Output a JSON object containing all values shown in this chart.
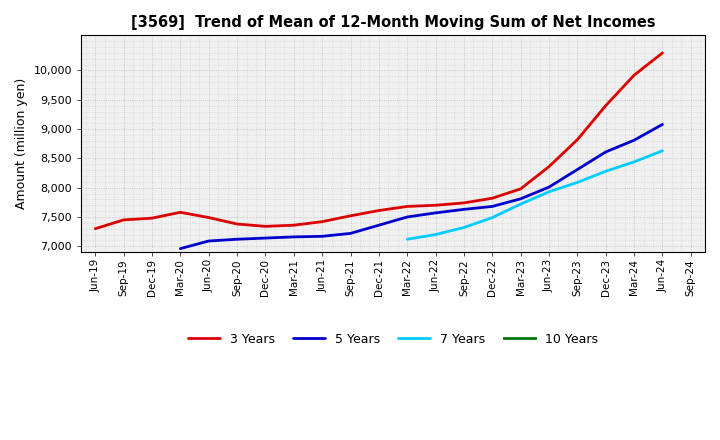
{
  "title": "[3569]  Trend of Mean of 12-Month Moving Sum of Net Incomes",
  "ylabel": "Amount (million yen)",
  "plot_bg_color": "#f0f0f0",
  "fig_bg_color": "#ffffff",
  "grid_color": "#bbbbbb",
  "ylim": [
    6900,
    10600
  ],
  "yticks": [
    7000,
    7500,
    8000,
    8500,
    9000,
    9500,
    10000
  ],
  "series": {
    "3 Years": {
      "color": "#dd0000",
      "linewidth": 2.0,
      "data": [
        [
          "Jun-19",
          7300
        ],
        [
          "Sep-19",
          7450
        ],
        [
          "Dec-19",
          7480
        ],
        [
          "Mar-20",
          7580
        ],
        [
          "Jun-20",
          7490
        ],
        [
          "Sep-20",
          7380
        ],
        [
          "Dec-20",
          7340
        ],
        [
          "Mar-21",
          7360
        ],
        [
          "Jun-21",
          7420
        ],
        [
          "Sep-21",
          7520
        ],
        [
          "Dec-21",
          7610
        ],
        [
          "Mar-22",
          7680
        ],
        [
          "Jun-22",
          7700
        ],
        [
          "Sep-22",
          7740
        ],
        [
          "Dec-22",
          7820
        ],
        [
          "Mar-23",
          7980
        ],
        [
          "Jun-23",
          8360
        ],
        [
          "Sep-23",
          8820
        ],
        [
          "Dec-23",
          9400
        ],
        [
          "Mar-24",
          9920
        ],
        [
          "Jun-24",
          10300
        ]
      ]
    },
    "5 Years": {
      "color": "#0000cc",
      "linewidth": 2.0,
      "data": [
        [
          "Mar-20",
          6960
        ],
        [
          "Jun-20",
          7090
        ],
        [
          "Sep-20",
          7120
        ],
        [
          "Dec-20",
          7140
        ],
        [
          "Mar-21",
          7160
        ],
        [
          "Jun-21",
          7170
        ],
        [
          "Sep-21",
          7220
        ],
        [
          "Dec-21",
          7360
        ],
        [
          "Mar-22",
          7500
        ],
        [
          "Jun-22",
          7570
        ],
        [
          "Sep-22",
          7630
        ],
        [
          "Dec-22",
          7680
        ],
        [
          "Mar-23",
          7810
        ],
        [
          "Jun-23",
          8010
        ],
        [
          "Sep-23",
          8310
        ],
        [
          "Dec-23",
          8610
        ],
        [
          "Mar-24",
          8810
        ],
        [
          "Jun-24",
          9080
        ]
      ]
    },
    "7 Years": {
      "color": "#00ccff",
      "linewidth": 2.0,
      "data": [
        [
          "Mar-22",
          7120
        ],
        [
          "Jun-22",
          7200
        ],
        [
          "Sep-22",
          7320
        ],
        [
          "Dec-22",
          7490
        ],
        [
          "Mar-23",
          7720
        ],
        [
          "Jun-23",
          7930
        ],
        [
          "Sep-23",
          8090
        ],
        [
          "Dec-23",
          8280
        ],
        [
          "Mar-24",
          8440
        ],
        [
          "Jun-24",
          8630
        ]
      ]
    },
    "10 Years": {
      "color": "#007700",
      "linewidth": 2.0,
      "data": []
    }
  },
  "xtick_labels": [
    "Jun-19",
    "Sep-19",
    "Dec-19",
    "Mar-20",
    "Jun-20",
    "Sep-20",
    "Dec-20",
    "Mar-21",
    "Jun-21",
    "Sep-21",
    "Dec-21",
    "Mar-22",
    "Jun-22",
    "Sep-22",
    "Dec-22",
    "Mar-23",
    "Jun-23",
    "Sep-23",
    "Dec-23",
    "Mar-24",
    "Jun-24",
    "Sep-24"
  ],
  "legend_order": [
    "3 Years",
    "5 Years",
    "7 Years",
    "10 Years"
  ]
}
